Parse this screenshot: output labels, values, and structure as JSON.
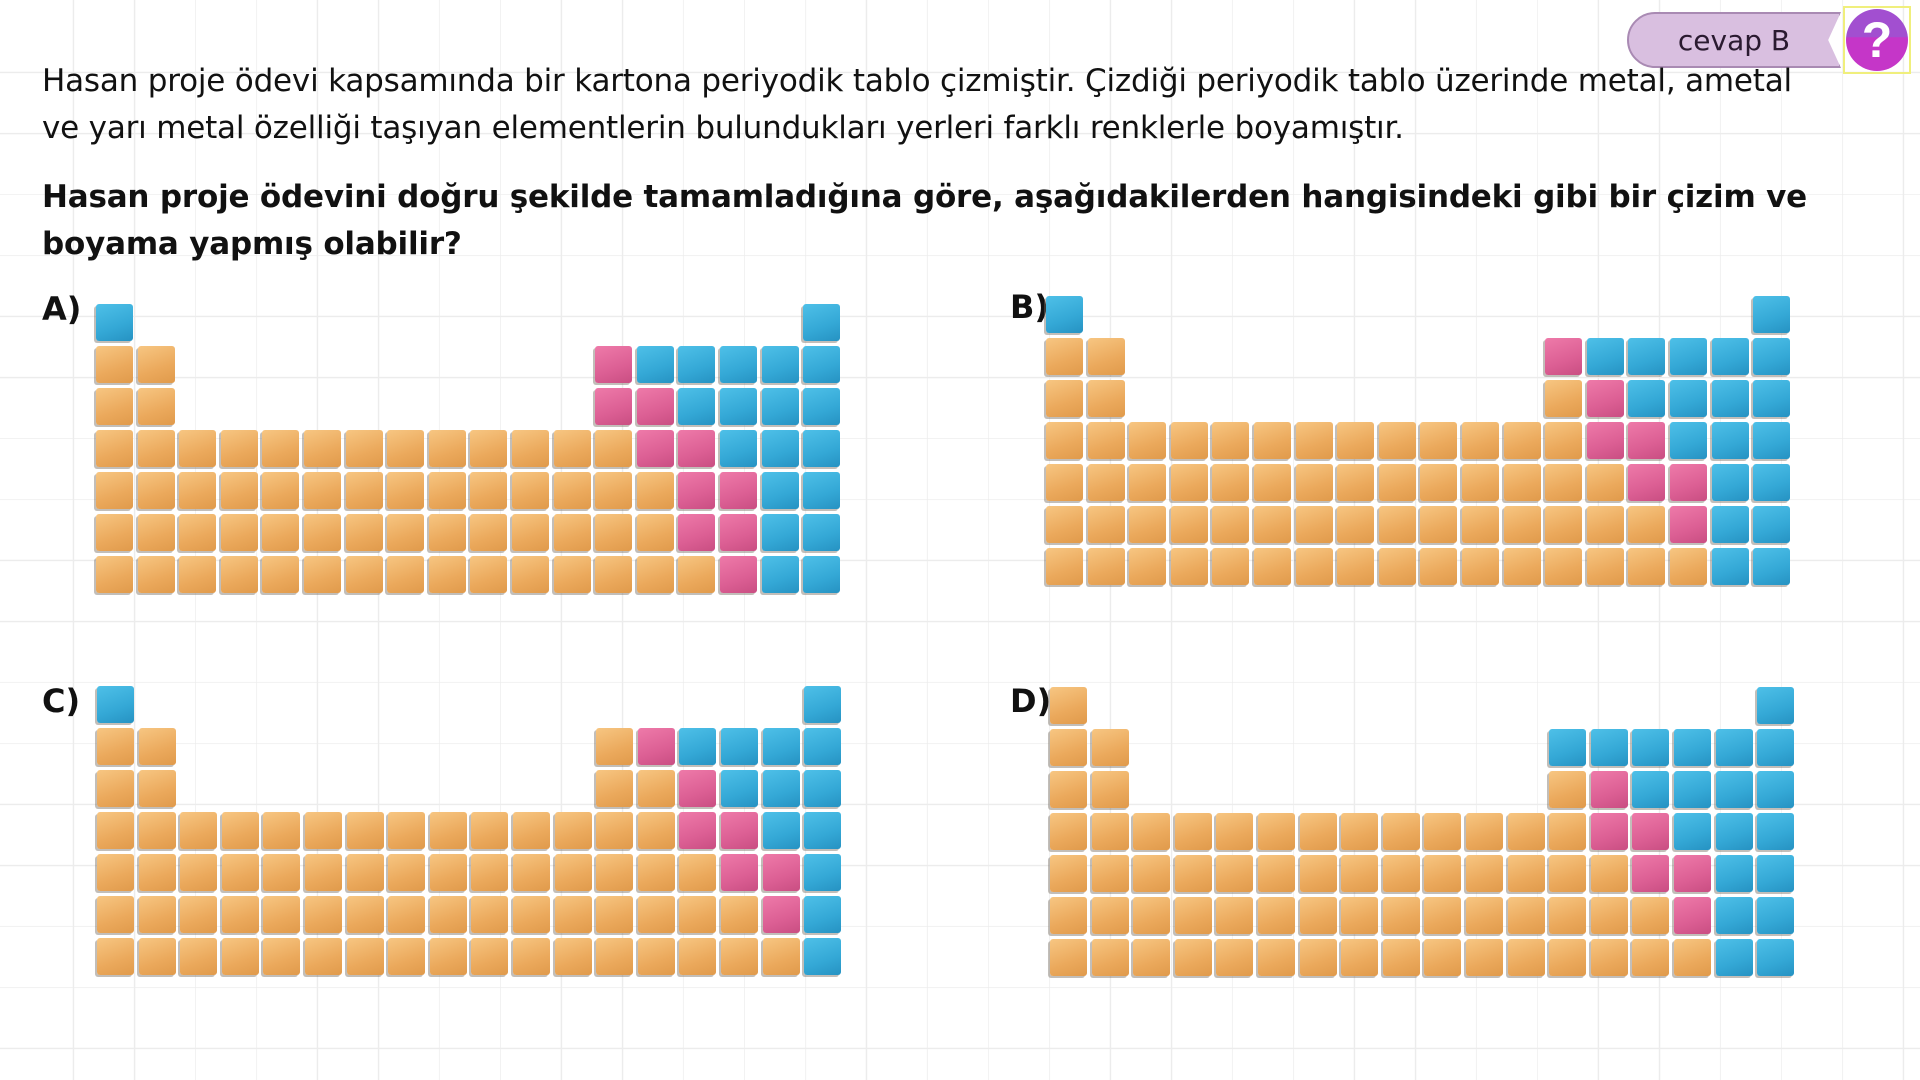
{
  "header": {
    "answer_badge": "cevap B",
    "help_icon": "?"
  },
  "question": {
    "intro": "Hasan proje ödevi kapsamında bir kartona periyodik tablo çizmiştir. Çizdiği periyodik tablo üzerinde metal, ametal ve yarı metal özelliği taşıyan elementlerin bulundukları yerleri farklı renklerle boyamıştır.",
    "prompt": "Hasan proje ödevini doğru şekilde tamamladığına göre, aşağıdakilerden hangisindeki gibi bir çizim ve boyama yapmış olabilir?"
  },
  "legend_colors": {
    "M": "#eba95c",
    "P": "#dc5f94",
    "N": "#34a8d6"
  },
  "options": [
    {
      "label": "A)",
      "rows": [
        "N................N",
        "MM..........PNNNNN",
        "MM..........PPNNNN",
        "MMMMMMMMMMMMMPPNNN",
        "MMMMMMMMMMMMMMPPNN",
        "MMMMMMMMMMMMMMPPNN",
        "MMMMMMMMMMMMMMMPNN"
      ]
    },
    {
      "label": "B)",
      "rows": [
        "N................N",
        "MM..........PNNNNN",
        "MM..........MPNNNN",
        "MMMMMMMMMMMMMPPNNN",
        "MMMMMMMMMMMMMMPPNN",
        "MMMMMMMMMMMMMMMPNN",
        "MMMMMMMMMMMMMMMMNN"
      ]
    },
    {
      "label": "C)",
      "rows": [
        "N................N",
        "MM..........MPNNNN",
        "MM..........MMPNNN",
        "MMMMMMMMMMMMMMPPNN",
        "MMMMMMMMMMMMMMMPPN",
        "MMMMMMMMMMMMMMMMPN",
        "MMMMMMMMMMMMMMMMMN"
      ]
    },
    {
      "label": "D)",
      "rows": [
        "M................N",
        "MM..........NNNNNN",
        "MM..........MPNNNN",
        "MMMMMMMMMMMMMPPNNN",
        "MMMMMMMMMMMMMMPPNN",
        "MMMMMMMMMMMMMMMPNN",
        "MMMMMMMMMMMMMMMMNN"
      ]
    }
  ]
}
